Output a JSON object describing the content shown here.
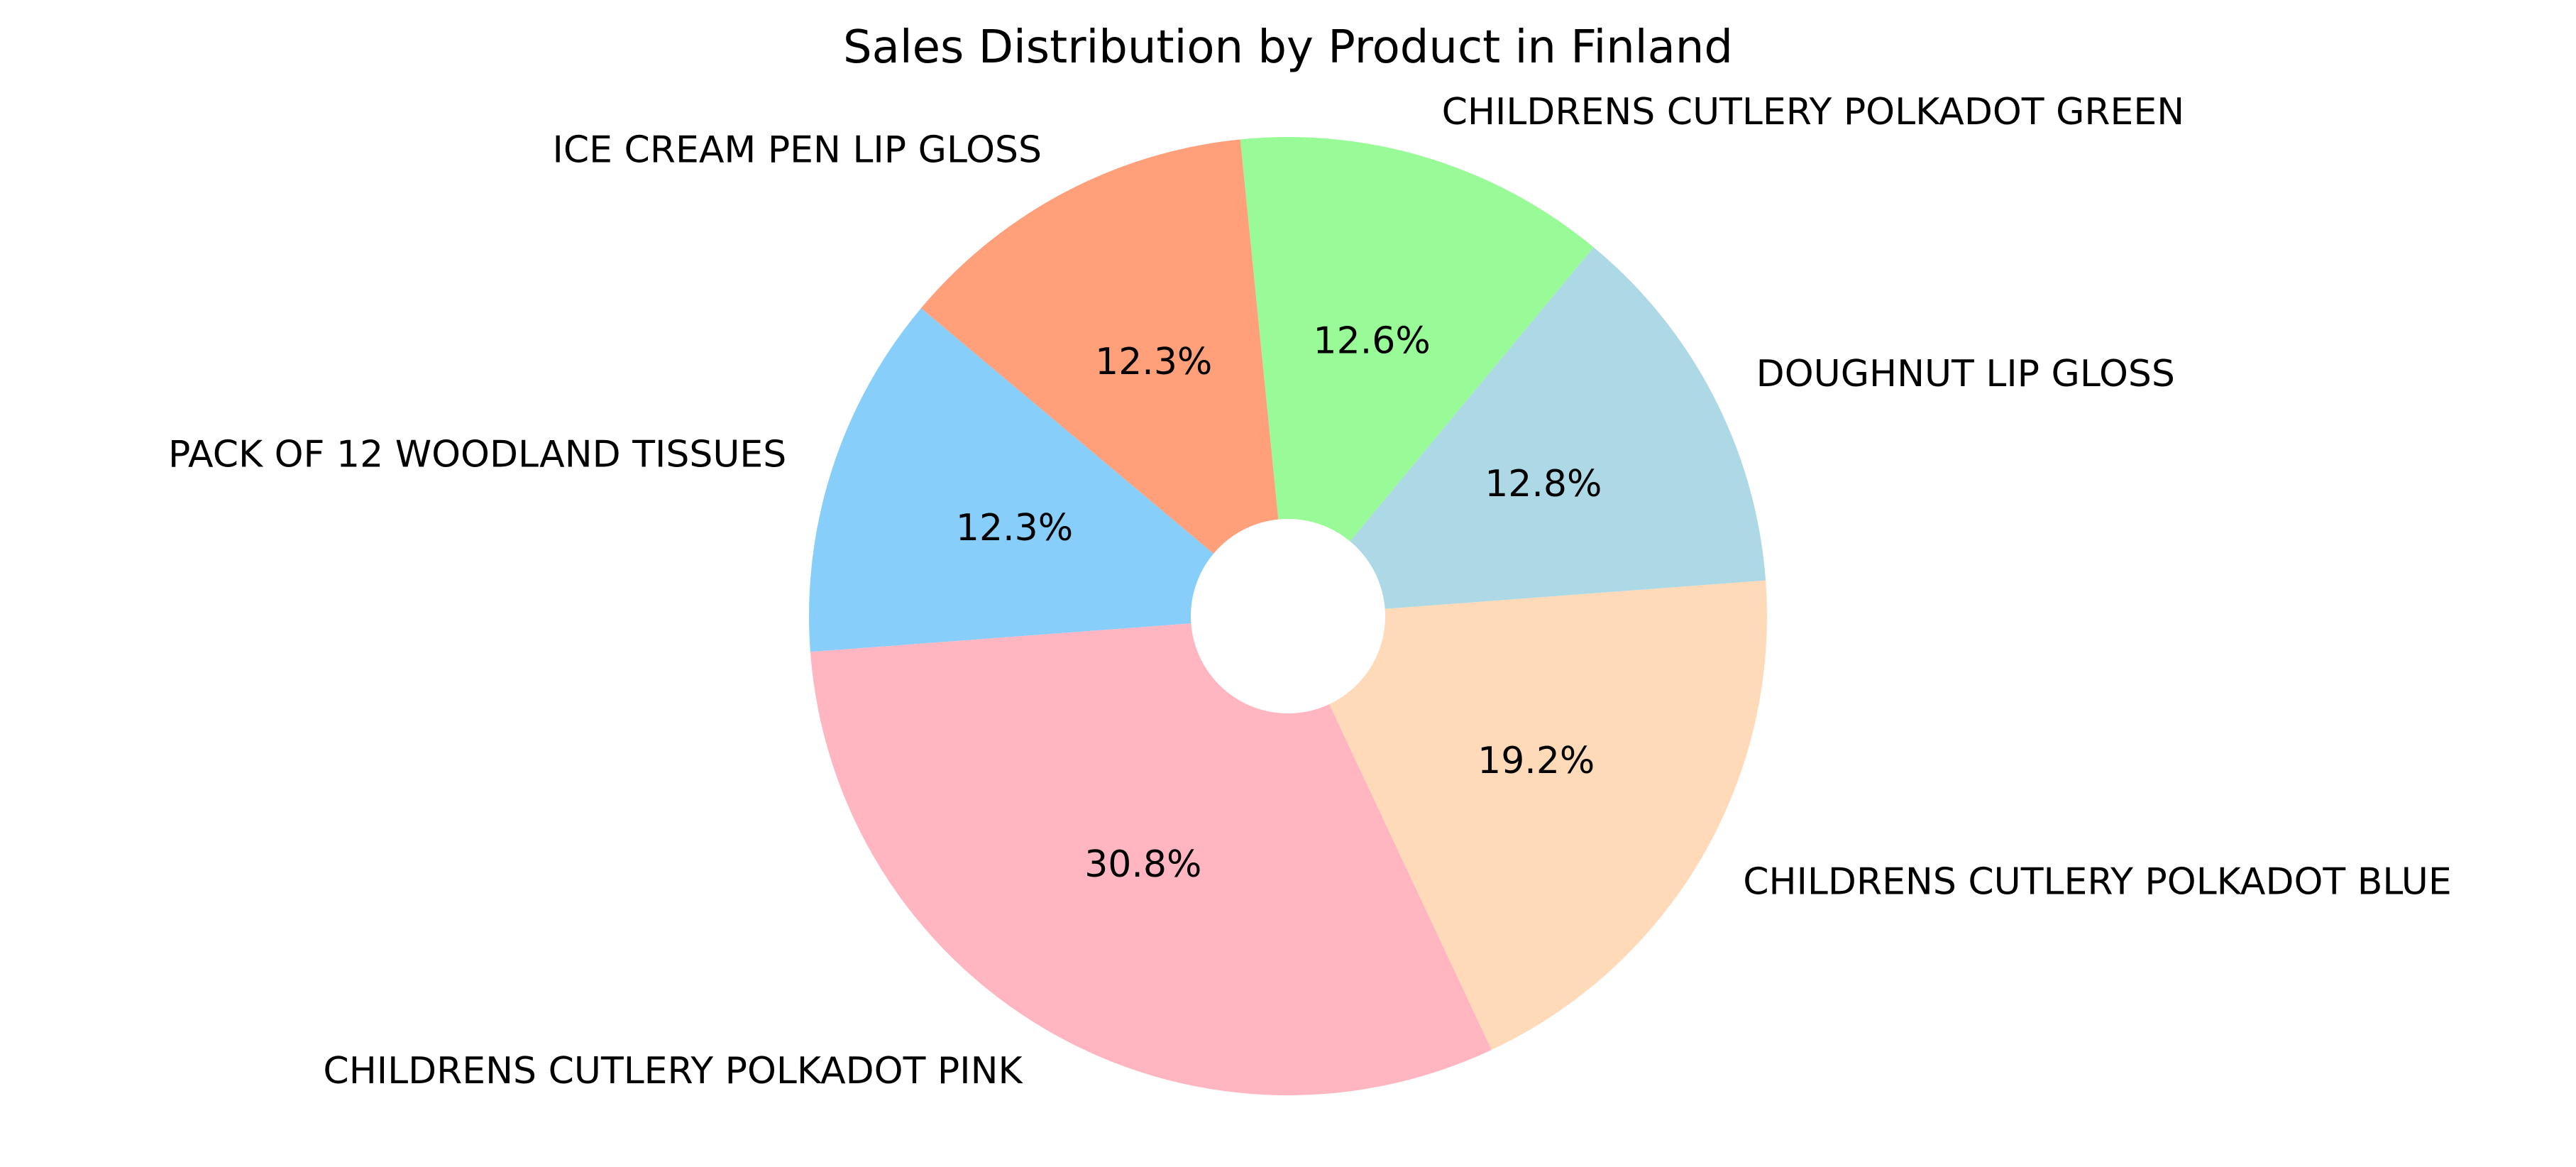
{
  "chart_data": {
    "type": "pie",
    "title": "Sales Distribution by Product in Finland",
    "donut": true,
    "start_angle_deg": 140,
    "direction": "counterclockwise",
    "slices": [
      {
        "label": "PACK OF 12 WOODLAND TISSUES",
        "value": 12.3,
        "pct_label": "12.3%",
        "color": "#87CEFA"
      },
      {
        "label": "CHILDRENS CUTLERY POLKADOT PINK",
        "value": 30.8,
        "pct_label": "30.8%",
        "color": "#FFB6C1"
      },
      {
        "label": "CHILDRENS CUTLERY POLKADOT BLUE",
        "value": 19.2,
        "pct_label": "19.2%",
        "color": "#FFDAB9"
      },
      {
        "label": "DOUGHNUT LIP GLOSS",
        "value": 12.8,
        "pct_label": "12.8%",
        "color": "#ADD8E6"
      },
      {
        "label": "CHILDRENS CUTLERY POLKADOT GREEN",
        "value": 12.6,
        "pct_label": "12.6%",
        "color": "#98FB98"
      },
      {
        "label": "ICE CREAM PEN LIP GLOSS",
        "value": 12.3,
        "pct_label": "12.3%",
        "color": "#FFA07A"
      }
    ]
  }
}
